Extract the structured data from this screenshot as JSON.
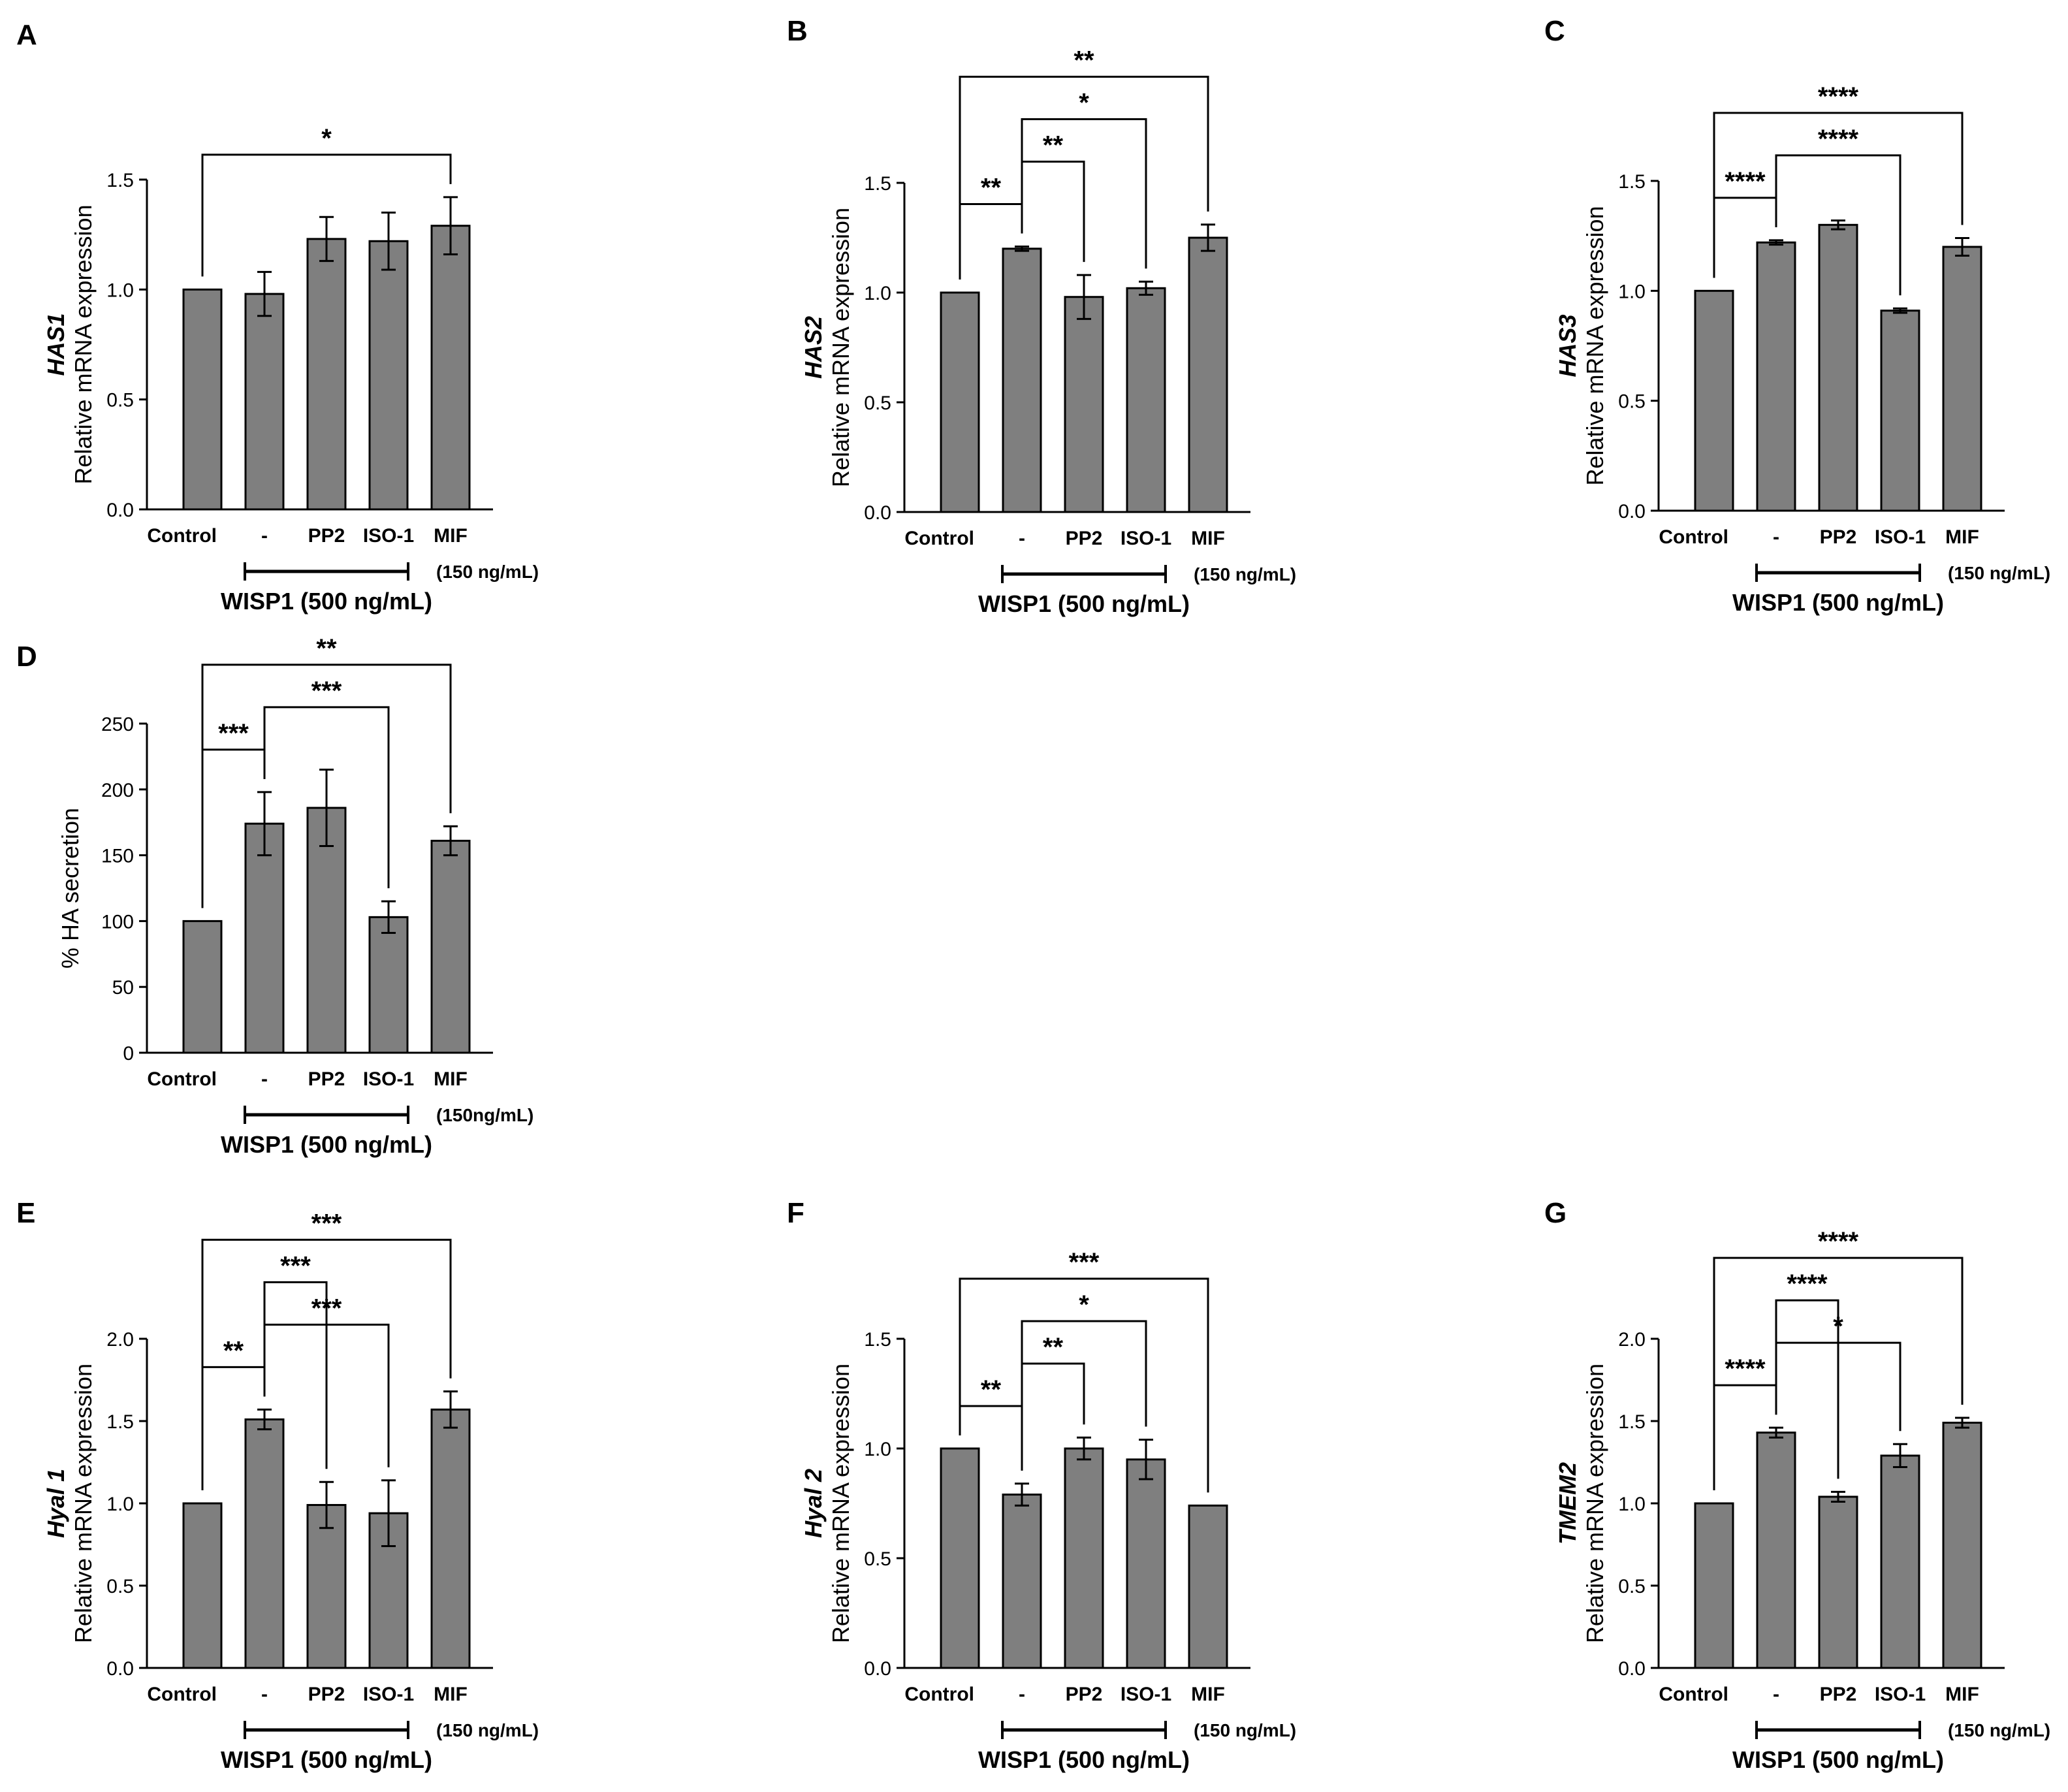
{
  "chart_data": [
    {
      "id": "A",
      "type": "bar",
      "panel_label": "A",
      "gene": "HAS1",
      "ylabel": "Relative mRNA expression",
      "categories": [
        "Control",
        "-",
        "PP2",
        "ISO-1",
        "MIF"
      ],
      "values": [
        1.0,
        0.98,
        1.23,
        1.22,
        1.29
      ],
      "errors": [
        0.0,
        0.1,
        0.1,
        0.13,
        0.13
      ],
      "ylim": [
        0,
        1.5
      ],
      "yticks": [
        "0.0",
        "0.5",
        "1.0",
        "1.5"
      ],
      "treatment": "WISP1 (500 ng/mL)",
      "mif_conc": "(150 ng/mL)",
      "comparisons": [
        {
          "from": 0,
          "to": 4,
          "label": "*"
        }
      ]
    },
    {
      "id": "B",
      "type": "bar",
      "panel_label": "B",
      "gene": "HAS2",
      "ylabel": "Relative mRNA expression",
      "categories": [
        "Control",
        "-",
        "PP2",
        "ISO-1",
        "MIF"
      ],
      "values": [
        1.0,
        1.2,
        0.98,
        1.02,
        1.25
      ],
      "errors": [
        0.0,
        0.01,
        0.1,
        0.03,
        0.06
      ],
      "ylim": [
        0,
        1.5
      ],
      "yticks": [
        "0.0",
        "0.5",
        "1.0",
        "1.5"
      ],
      "treatment": "WISP1 (500 ng/mL)",
      "mif_conc": "(150 ng/mL)",
      "comparisons": [
        {
          "from": 0,
          "to": 1,
          "label": "**"
        },
        {
          "from": 1,
          "to": 2,
          "label": "**"
        },
        {
          "from": 1,
          "to": 3,
          "label": "*"
        },
        {
          "from": 0,
          "to": 4,
          "label": "**"
        }
      ]
    },
    {
      "id": "C",
      "type": "bar",
      "panel_label": "C",
      "gene": "HAS3",
      "ylabel": "Relative mRNA expression",
      "categories": [
        "Control",
        "-",
        "PP2",
        "ISO-1",
        "MIF"
      ],
      "values": [
        1.0,
        1.22,
        1.3,
        0.91,
        1.2
      ],
      "errors": [
        0.0,
        0.01,
        0.02,
        0.01,
        0.04
      ],
      "ylim": [
        0,
        1.5
      ],
      "yticks": [
        "0.0",
        "0.5",
        "1.0",
        "1.5"
      ],
      "treatment": "WISP1 (500 ng/mL)",
      "mif_conc": "(150 ng/mL)",
      "comparisons": [
        {
          "from": 0,
          "to": 1,
          "label": "****"
        },
        {
          "from": 1,
          "to": 3,
          "label": "****"
        },
        {
          "from": 0,
          "to": 4,
          "label": "****"
        }
      ]
    },
    {
      "id": "D",
      "type": "bar",
      "panel_label": "D",
      "gene": "",
      "ylabel": "% HA secretion",
      "categories": [
        "Control",
        "-",
        "PP2",
        "ISO-1",
        "MIF"
      ],
      "values": [
        100,
        174,
        186,
        103,
        161
      ],
      "errors": [
        0,
        24,
        29,
        12,
        11
      ],
      "ylim": [
        0,
        250
      ],
      "yticks": [
        "0",
        "50",
        "100",
        "150",
        "200",
        "250"
      ],
      "treatment": "WISP1 (500 ng/mL)",
      "mif_conc": "(150ng/mL)",
      "comparisons": [
        {
          "from": 0,
          "to": 1,
          "label": "***"
        },
        {
          "from": 1,
          "to": 3,
          "label": "***"
        },
        {
          "from": 0,
          "to": 4,
          "label": "**"
        }
      ]
    },
    {
      "id": "E",
      "type": "bar",
      "panel_label": "E",
      "gene": "Hyal 1",
      "ylabel": "Relative mRNA expression",
      "categories": [
        "Control",
        "-",
        "PP2",
        "ISO-1",
        "MIF"
      ],
      "values": [
        1.0,
        1.51,
        0.99,
        0.94,
        1.57
      ],
      "errors": [
        0.0,
        0.06,
        0.14,
        0.2,
        0.11
      ],
      "ylim": [
        0,
        2.0
      ],
      "yticks": [
        "0.0",
        "0.5",
        "1.0",
        "1.5",
        "2.0"
      ],
      "treatment": "WISP1 (500 ng/mL)",
      "mif_conc": "(150 ng/mL)",
      "comparisons": [
        {
          "from": 0,
          "to": 1,
          "label": "**"
        },
        {
          "from": 1,
          "to": 3,
          "label": "***"
        },
        {
          "from": 1,
          "to": 2,
          "label": "***"
        },
        {
          "from": 0,
          "to": 4,
          "label": "***"
        }
      ]
    },
    {
      "id": "F",
      "type": "bar",
      "panel_label": "F",
      "gene": "Hyal 2",
      "ylabel": "Relative mRNA expression",
      "categories": [
        "Control",
        "-",
        "PP2",
        "ISO-1",
        "MIF"
      ],
      "values": [
        1.0,
        0.79,
        1.0,
        0.95,
        0.74
      ],
      "errors": [
        0.0,
        0.05,
        0.05,
        0.09,
        0.0
      ],
      "ylim": [
        0,
        1.5
      ],
      "yticks": [
        "0.0",
        "0.5",
        "1.0",
        "1.5"
      ],
      "treatment": "WISP1 (500 ng/mL)",
      "mif_conc": "(150 ng/mL)",
      "comparisons": [
        {
          "from": 0,
          "to": 1,
          "label": "**"
        },
        {
          "from": 1,
          "to": 2,
          "label": "**"
        },
        {
          "from": 1,
          "to": 3,
          "label": "*"
        },
        {
          "from": 0,
          "to": 4,
          "label": "***"
        }
      ]
    },
    {
      "id": "G",
      "type": "bar",
      "panel_label": "G",
      "gene": "TMEM2",
      "ylabel": "Relative mRNA expression",
      "categories": [
        "Control",
        "-",
        "PP2",
        "ISO-1",
        "MIF"
      ],
      "values": [
        1.0,
        1.43,
        1.04,
        1.29,
        1.49
      ],
      "errors": [
        0.0,
        0.03,
        0.03,
        0.07,
        0.03
      ],
      "ylim": [
        0,
        2.0
      ],
      "yticks": [
        "0.0",
        "0.5",
        "1.0",
        "1.5",
        "2.0"
      ],
      "treatment": "WISP1 (500 ng/mL)",
      "mif_conc": "(150 ng/mL)",
      "comparisons": [
        {
          "from": 0,
          "to": 1,
          "label": "****"
        },
        {
          "from": 1,
          "to": 3,
          "label": "*"
        },
        {
          "from": 1,
          "to": 2,
          "label": "****"
        },
        {
          "from": 0,
          "to": 4,
          "label": "****"
        }
      ]
    }
  ],
  "colors": {
    "bar_fill": "#7f7f7f",
    "bar_stroke": "#000000",
    "axis": "#000000"
  }
}
